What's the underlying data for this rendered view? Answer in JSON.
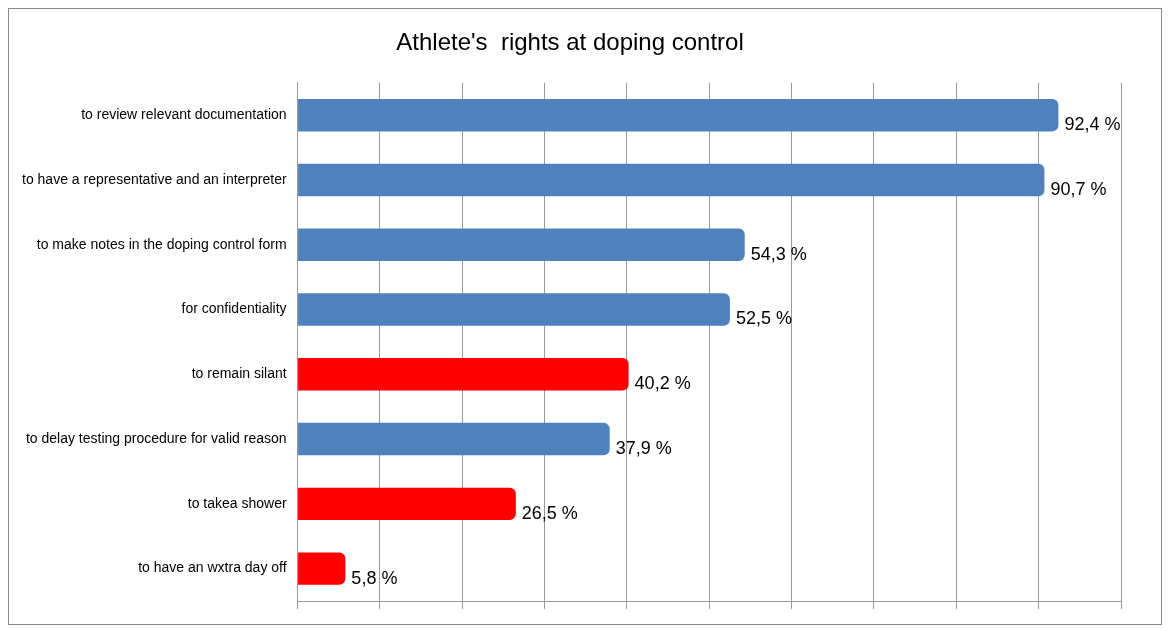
{
  "chart_data": {
    "type": "bar",
    "orientation": "horizontal",
    "title": "Athlete's  rights at doping control",
    "categories": [
      "to review relevant documentation",
      "to have a representative and an interpreter",
      "to make notes in the doping control form",
      "for confidentiality",
      "to remain silant",
      "to delay testing procedure for valid reason",
      "to takea shower",
      "to have an wxtra day off"
    ],
    "values": [
      92.4,
      90.7,
      54.3,
      52.5,
      40.2,
      37.9,
      26.5,
      5.8
    ],
    "value_labels": [
      "92,4 %",
      "90,7 %",
      "54,3 %",
      "52,5 %",
      "40,2 %",
      "37,9 %",
      "26,5 %",
      "5,8 %"
    ],
    "colors": [
      "#4f81bd",
      "#4f81bd",
      "#4f81bd",
      "#4f81bd",
      "#ff0000",
      "#4f81bd",
      "#ff0000",
      "#ff0000"
    ],
    "xlim": [
      0,
      100
    ],
    "xticks": [
      {
        "value": 0,
        "label": null
      },
      {
        "value": 10,
        "label": null
      },
      {
        "value": 20,
        "label": null
      },
      {
        "value": 30,
        "label": null
      },
      {
        "value": 40,
        "label": null
      },
      {
        "value": 50,
        "label": null
      },
      {
        "value": 60,
        "label": null
      },
      {
        "value": 70,
        "label": null
      },
      {
        "value": 80,
        "label": null
      },
      {
        "value": 90,
        "label": null
      },
      {
        "value": 100,
        "label": null
      }
    ],
    "grid": "x",
    "tick_labels": "y",
    "legend": false
  }
}
